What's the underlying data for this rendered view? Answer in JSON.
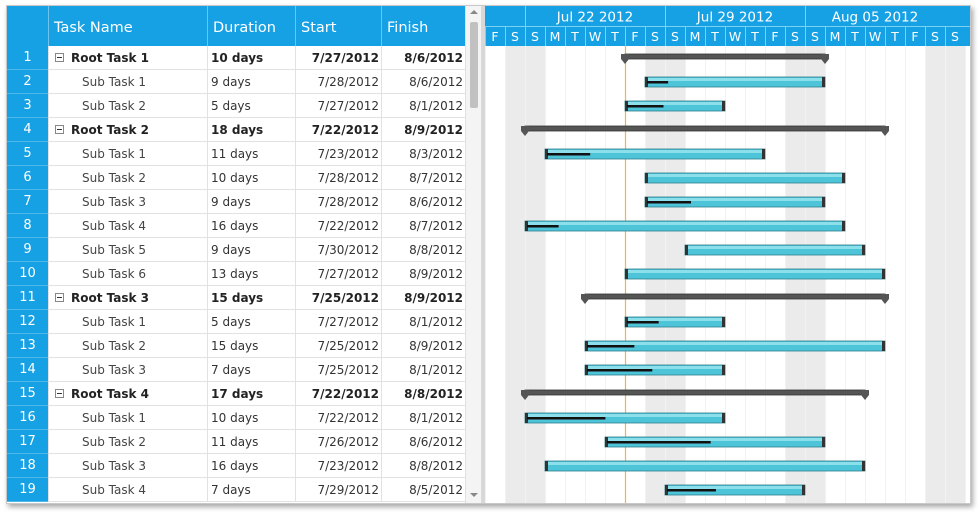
{
  "columns": {
    "name": "Task Name",
    "duration": "Duration",
    "start": "Start",
    "finish": "Finish"
  },
  "timeline": {
    "weeks": [
      "Jul 22 2012",
      "Jul 29 2012",
      "Aug 05 2012"
    ],
    "days": [
      "F",
      "S",
      "S",
      "M",
      "T",
      "W",
      "T",
      "F",
      "S",
      "S",
      "M",
      "T",
      "W",
      "T",
      "F",
      "S",
      "S",
      "M",
      "T",
      "W",
      "T",
      "F",
      "S",
      "S"
    ],
    "weekend_indices": [
      1,
      2,
      8,
      9,
      15,
      16,
      22,
      23
    ],
    "today_index": 7
  },
  "tasks": [
    {
      "id": "1",
      "name": "Root Task 1",
      "duration": "10 days",
      "start": "7/27/2012",
      "finish": "8/6/2012",
      "root": true,
      "startDay": 7,
      "days": 10,
      "progress": 0
    },
    {
      "id": "2",
      "name": "Sub Task 1",
      "duration": "9 days",
      "start": "7/28/2012",
      "finish": "8/6/2012",
      "root": false,
      "startDay": 8,
      "days": 9,
      "progress": 0.12
    },
    {
      "id": "3",
      "name": "Sub Task 2",
      "duration": "5 days",
      "start": "7/27/2012",
      "finish": "8/1/2012",
      "root": false,
      "startDay": 7,
      "days": 5,
      "progress": 0.38
    },
    {
      "id": "4",
      "name": "Root Task 2",
      "duration": "18 days",
      "start": "7/22/2012",
      "finish": "8/9/2012",
      "root": true,
      "startDay": 2,
      "days": 18,
      "progress": 0
    },
    {
      "id": "5",
      "name": "Sub Task 1",
      "duration": "11 days",
      "start": "7/23/2012",
      "finish": "8/3/2012",
      "root": false,
      "startDay": 3,
      "days": 11,
      "progress": 0.2
    },
    {
      "id": "6",
      "name": "Sub Task 2",
      "duration": "10 days",
      "start": "7/28/2012",
      "finish": "8/7/2012",
      "root": false,
      "startDay": 8,
      "days": 10,
      "progress": 0
    },
    {
      "id": "7",
      "name": "Sub Task 3",
      "duration": "9 days",
      "start": "7/28/2012",
      "finish": "8/6/2012",
      "root": false,
      "startDay": 8,
      "days": 9,
      "progress": 0.25
    },
    {
      "id": "8",
      "name": "Sub Task 4",
      "duration": "16 days",
      "start": "7/22/2012",
      "finish": "8/7/2012",
      "root": false,
      "startDay": 2,
      "days": 16,
      "progress": 0.1
    },
    {
      "id": "9",
      "name": "Sub Task 5",
      "duration": "9 days",
      "start": "7/30/2012",
      "finish": "8/8/2012",
      "root": false,
      "startDay": 10,
      "days": 9,
      "progress": 0
    },
    {
      "id": "10",
      "name": "Sub Task 6",
      "duration": "13 days",
      "start": "7/27/2012",
      "finish": "8/9/2012",
      "root": false,
      "startDay": 7,
      "days": 13,
      "progress": 0
    },
    {
      "id": "11",
      "name": "Root Task 3",
      "duration": "15 days",
      "start": "7/25/2012",
      "finish": "8/9/2012",
      "root": true,
      "startDay": 5,
      "days": 15,
      "progress": 0
    },
    {
      "id": "12",
      "name": "Sub Task 1",
      "duration": "5 days",
      "start": "7/27/2012",
      "finish": "8/1/2012",
      "root": false,
      "startDay": 7,
      "days": 5,
      "progress": 0.33
    },
    {
      "id": "13",
      "name": "Sub Task 2",
      "duration": "15 days",
      "start": "7/25/2012",
      "finish": "8/9/2012",
      "root": false,
      "startDay": 5,
      "days": 15,
      "progress": 0.16
    },
    {
      "id": "14",
      "name": "Sub Task 3",
      "duration": "7 days",
      "start": "7/25/2012",
      "finish": "8/1/2012",
      "root": false,
      "startDay": 5,
      "days": 7,
      "progress": 0.48
    },
    {
      "id": "15",
      "name": "Root Task 4",
      "duration": "17 days",
      "start": "7/22/2012",
      "finish": "8/8/2012",
      "root": true,
      "startDay": 2,
      "days": 17,
      "progress": 0
    },
    {
      "id": "16",
      "name": "Sub Task 1",
      "duration": "10 days",
      "start": "7/22/2012",
      "finish": "8/1/2012",
      "root": false,
      "startDay": 2,
      "days": 10,
      "progress": 0.4
    },
    {
      "id": "17",
      "name": "Sub Task 2",
      "duration": "11 days",
      "start": "7/26/2012",
      "finish": "8/6/2012",
      "root": false,
      "startDay": 6,
      "days": 11,
      "progress": 0.48
    },
    {
      "id": "18",
      "name": "Sub Task 3",
      "duration": "16 days",
      "start": "7/23/2012",
      "finish": "8/8/2012",
      "root": false,
      "startDay": 3,
      "days": 16,
      "progress": 0
    },
    {
      "id": "19",
      "name": "Sub Task 4",
      "duration": "7 days",
      "start": "7/29/2012",
      "finish": "8/5/2012",
      "root": false,
      "startDay": 9,
      "days": 7,
      "progress": 0.36
    }
  ],
  "colors": {
    "header": "#17a1e5",
    "bar": "#4ec4d8",
    "root_bar": "#555555",
    "today": "#f5b53a",
    "weekend": "#ebebeb"
  }
}
